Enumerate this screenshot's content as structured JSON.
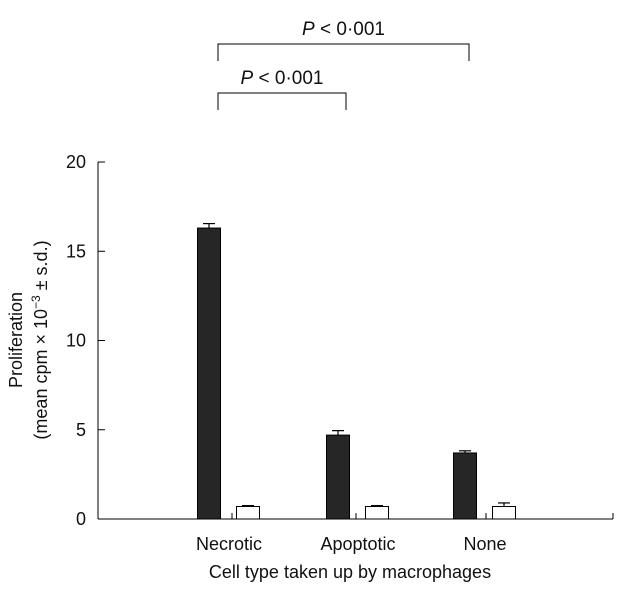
{
  "chart_data": {
    "type": "bar",
    "categories": [
      "Necrotic",
      "Apoptotic",
      "None"
    ],
    "series": [
      {
        "values": [
          16.3,
          4.7,
          3.7
        ],
        "errors": [
          0.25,
          0.25,
          0.12
        ],
        "color": "#262626"
      },
      {
        "values": [
          0.7,
          0.7,
          0.7
        ],
        "errors": [
          0.05,
          0.05,
          0.2
        ],
        "color": "#ffffff"
      }
    ],
    "xlabel": "Cell type taken up by macrophages",
    "ylabel_line1": "Proliferation",
    "ylabel_line2_prefix": "(mean cpm × 10",
    "ylabel_line2_sup": "−3",
    "ylabel_line2_suffix": " ± s.d.)",
    "ylim": [
      0,
      20
    ],
    "yticks": [
      "0",
      "5",
      "10",
      "15",
      "20"
    ],
    "grid": false,
    "annotations": [
      {
        "from": "Necrotic",
        "to": "None",
        "text_italic": "P",
        "text_rest": " < 0·001"
      },
      {
        "from": "Necrotic",
        "to": "Apoptotic",
        "text_italic": "P",
        "text_rest": " < 0·001"
      }
    ]
  }
}
